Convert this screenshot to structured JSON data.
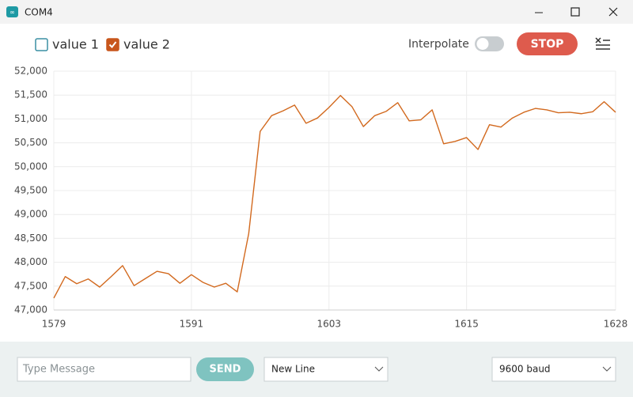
{
  "window": {
    "title": "COM4"
  },
  "toolbar": {
    "interpolate_label": "Interpolate",
    "interpolate_on": false,
    "stop_button": "STOP"
  },
  "chart_data": {
    "type": "line",
    "legend": [
      {
        "name": "value 1",
        "checked": false,
        "color": "#3a8fa3"
      },
      {
        "name": "value 2",
        "checked": true,
        "color": "#c8561c"
      }
    ],
    "x": [
      1579,
      1580,
      1581,
      1582,
      1583,
      1584,
      1585,
      1586,
      1587,
      1588,
      1589,
      1590,
      1591,
      1592,
      1593,
      1594,
      1595,
      1596,
      1597,
      1598,
      1599,
      1600,
      1601,
      1602,
      1603,
      1604,
      1605,
      1606,
      1607,
      1608,
      1609,
      1610,
      1611,
      1612,
      1613,
      1614,
      1615,
      1616,
      1617,
      1618,
      1619,
      1620,
      1621,
      1622,
      1623,
      1624,
      1625,
      1626,
      1627,
      1628
    ],
    "series": [
      {
        "name": "value 2",
        "color": "#d2691e",
        "values": [
          47250,
          47700,
          47550,
          47650,
          47480,
          47700,
          47930,
          47510,
          47660,
          47810,
          47760,
          47560,
          47740,
          47580,
          47480,
          47560,
          47380,
          48600,
          50740,
          51070,
          51170,
          51290,
          50910,
          51020,
          51240,
          51490,
          51260,
          50840,
          51070,
          51160,
          51340,
          50960,
          50980,
          51190,
          50480,
          50530,
          50610,
          50360,
          50880,
          50830,
          51020,
          51140,
          51220,
          51190,
          51130,
          51140,
          51110,
          51150,
          51360,
          51140
        ]
      }
    ],
    "xlim": [
      1579,
      1628
    ],
    "xticks": [
      1579,
      1591,
      1603,
      1615,
      1628
    ],
    "ylim": [
      47000,
      52000
    ],
    "yticks": [
      {
        "value": 47000,
        "label": "47,000"
      },
      {
        "value": 47500,
        "label": "47,500"
      },
      {
        "value": 48000,
        "label": "48,000"
      },
      {
        "value": 48500,
        "label": "48,500"
      },
      {
        "value": 49000,
        "label": "49,000"
      },
      {
        "value": 49500,
        "label": "49,500"
      },
      {
        "value": 50000,
        "label": "50,000"
      },
      {
        "value": 50500,
        "label": "50,500"
      },
      {
        "value": 51000,
        "label": "51,000"
      },
      {
        "value": 51500,
        "label": "51,500"
      },
      {
        "value": 52000,
        "label": "52,000"
      }
    ],
    "grid": true
  },
  "footer": {
    "message_placeholder": "Type Message",
    "send_button": "SEND",
    "line_ending": "New Line",
    "baud_rate": "9600 baud"
  }
}
